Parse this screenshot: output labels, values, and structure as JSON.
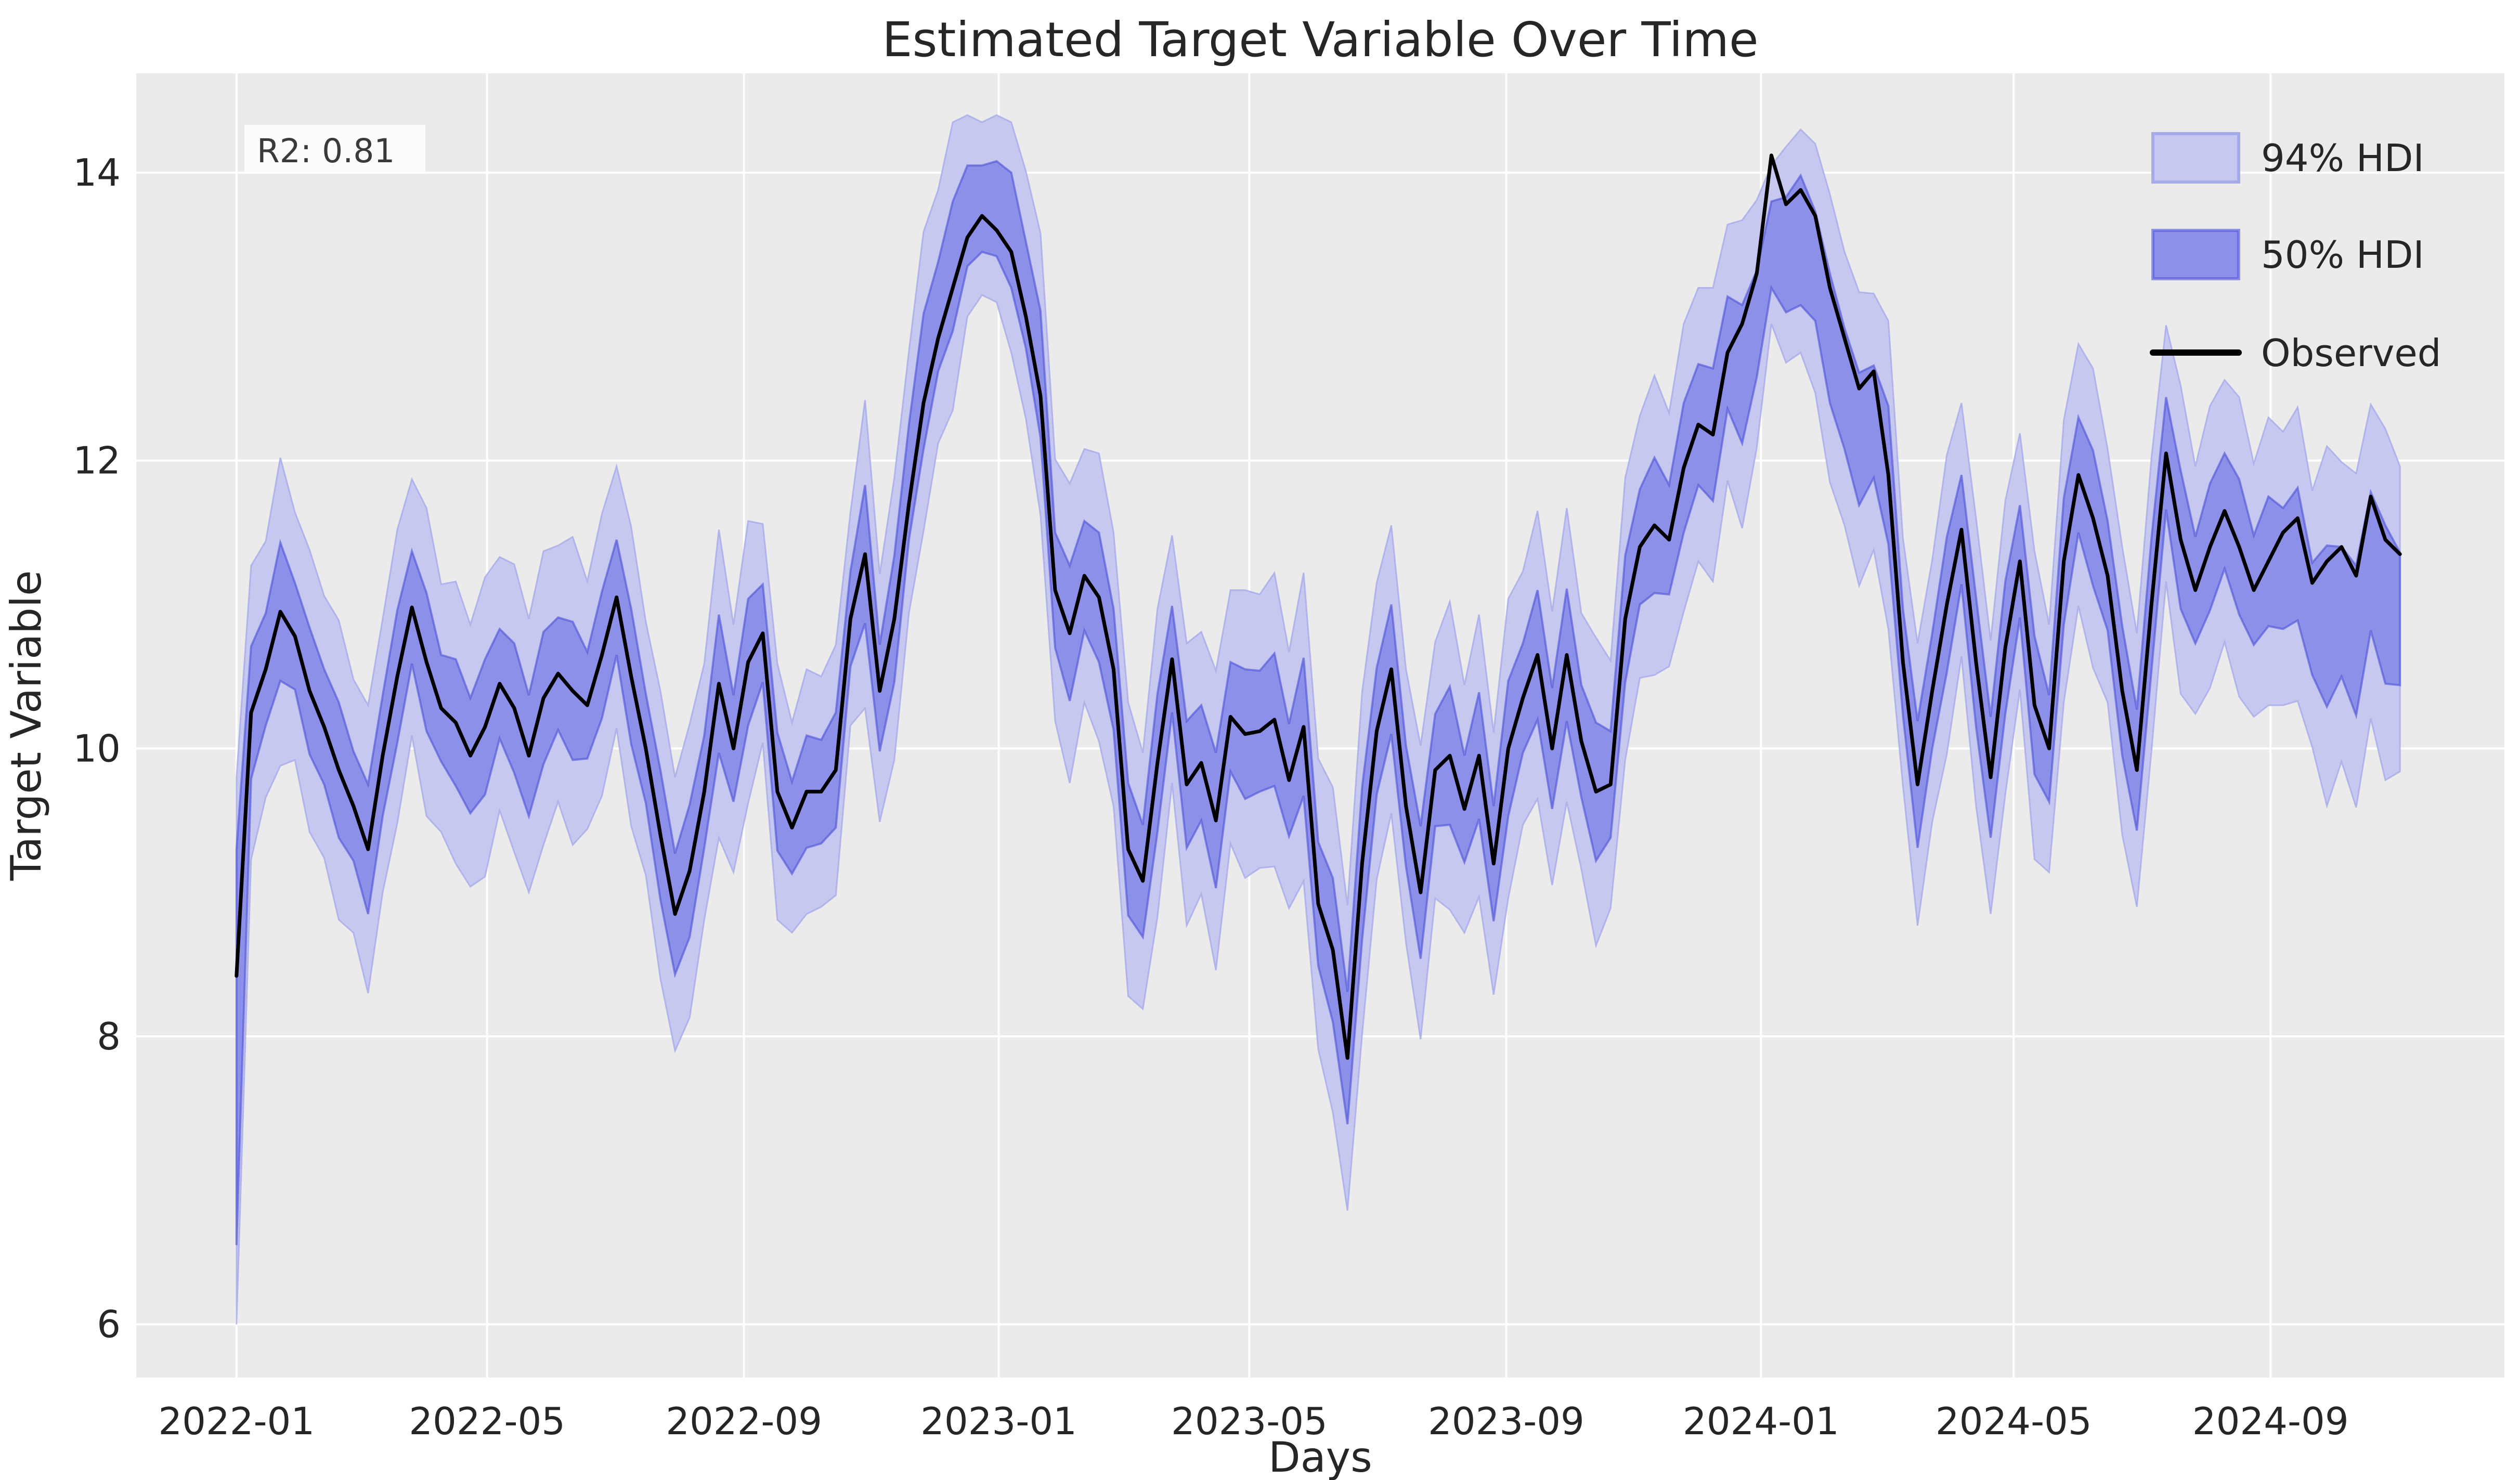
{
  "chart_data": {
    "type": "line",
    "title": "Estimated Target Variable Over Time",
    "xlabel": "Days",
    "ylabel": "Target Variable",
    "annotation": {
      "text": "R2: 0.81"
    },
    "legend": [
      {
        "label": "94% HDI",
        "kind": "band"
      },
      {
        "label": "50% HDI",
        "kind": "band"
      },
      {
        "label": "Observed",
        "kind": "line"
      }
    ],
    "legend_position": "upper right",
    "grid": true,
    "x_start_date": "2022-01-01",
    "x_interval_days": 7,
    "n_points": 149,
    "xlim_days": [
      -48,
      1086
    ],
    "ylim": [
      5.63,
      14.69
    ],
    "xticks": [
      {
        "day": 0,
        "label": "2022-01"
      },
      {
        "day": 120,
        "label": "2022-05"
      },
      {
        "day": 243,
        "label": "2022-09"
      },
      {
        "day": 365,
        "label": "2023-01"
      },
      {
        "day": 485,
        "label": "2023-05"
      },
      {
        "day": 608,
        "label": "2023-09"
      },
      {
        "day": 730,
        "label": "2024-01"
      },
      {
        "day": 851,
        "label": "2024-05"
      },
      {
        "day": 974,
        "label": "2024-09"
      }
    ],
    "yticks": [
      {
        "value": 6,
        "label": "6"
      },
      {
        "value": 8,
        "label": "8"
      },
      {
        "value": 10,
        "label": "10"
      },
      {
        "value": 12,
        "label": "12"
      },
      {
        "value": 14,
        "label": "14"
      }
    ],
    "series": {
      "observed": [
        8.42,
        10.25,
        10.55,
        10.95,
        10.78,
        10.4,
        10.15,
        9.85,
        9.6,
        9.3,
        9.95,
        10.5,
        10.98,
        10.6,
        10.28,
        10.18,
        9.95,
        10.15,
        10.45,
        10.28,
        9.95,
        10.35,
        10.52,
        10.4,
        10.3,
        10.65,
        11.05,
        10.5,
        10.0,
        9.4,
        8.85,
        9.15,
        9.7,
        10.45,
        10.0,
        10.6,
        10.8,
        9.7,
        9.45,
        9.7,
        9.7,
        9.85,
        10.9,
        11.35,
        10.4,
        10.9,
        11.7,
        12.4,
        12.85,
        13.2,
        13.55,
        13.7,
        13.6,
        13.45,
        13.0,
        12.45,
        11.1,
        10.8,
        11.2,
        11.05,
        10.55,
        9.3,
        9.08,
        9.9,
        10.62,
        9.75,
        9.9,
        9.5,
        10.22,
        10.1,
        10.12,
        10.2,
        9.78,
        10.15,
        8.92,
        8.6,
        7.85,
        9.2,
        10.12,
        10.55,
        9.6,
        9.0,
        9.85,
        9.95,
        9.58,
        9.95,
        9.2,
        10.0,
        10.35,
        10.65,
        10.0,
        10.65,
        10.05,
        9.7,
        9.75,
        10.9,
        11.4,
        11.55,
        11.45,
        11.95,
        12.25,
        12.18,
        12.75,
        12.95,
        13.3,
        14.12,
        13.78,
        13.88,
        13.7,
        13.2,
        12.85,
        12.5,
        12.62,
        11.9,
        10.6,
        9.75,
        10.4,
        11.0,
        11.52,
        10.6,
        9.8,
        10.7,
        11.3,
        10.3,
        10.0,
        11.3,
        11.9,
        11.6,
        11.2,
        10.4,
        9.85,
        11.0,
        12.05,
        11.45,
        11.1,
        11.4,
        11.65,
        11.4,
        11.1,
        11.3,
        11.5,
        11.6,
        11.15,
        11.3,
        11.4,
        11.2,
        11.75,
        11.45,
        11.35
      ],
      "hdi94_lower": [
        6.0,
        9.23,
        9.66,
        9.88,
        9.92,
        9.42,
        9.24,
        8.81,
        8.72,
        8.3,
        9.0,
        9.48,
        10.09,
        9.53,
        9.42,
        9.2,
        9.04,
        9.11,
        9.57,
        9.28,
        9.0,
        9.33,
        9.63,
        9.33,
        9.44,
        9.67,
        10.14,
        9.46,
        9.12,
        8.4,
        7.9,
        8.13,
        8.81,
        9.38,
        9.14,
        9.62,
        10.04,
        8.81,
        8.72,
        8.85,
        8.9,
        8.98,
        10.16,
        10.28,
        9.49,
        9.92,
        10.94,
        11.51,
        12.12,
        12.35,
        13.0,
        13.15,
        13.1,
        12.75,
        12.29,
        11.62,
        10.19,
        9.76,
        10.32,
        10.05,
        9.6,
        8.28,
        8.19,
        8.83,
        9.76,
        8.77,
        8.99,
        8.46,
        9.34,
        9.1,
        9.17,
        9.18,
        8.89,
        9.08,
        7.91,
        7.47,
        6.79,
        8.01,
        9.09,
        9.55,
        8.65,
        7.98,
        8.96,
        8.88,
        8.72,
        8.97,
        8.29,
        8.96,
        9.47,
        9.65,
        9.05,
        9.63,
        9.16,
        8.63,
        8.89,
        9.92,
        10.49,
        10.51,
        10.57,
        10.95,
        11.3,
        11.16,
        11.86,
        11.53,
        12.09,
        12.95,
        12.68,
        12.75,
        12.47,
        11.85,
        11.55,
        11.13,
        11.38,
        10.83,
        9.74,
        8.77,
        9.49,
        9.96,
        10.64,
        9.6,
        8.85,
        9.68,
        10.41,
        9.23,
        9.14,
        10.32,
        10.99,
        10.56,
        10.32,
        9.4,
        8.9,
        9.98,
        11.16,
        10.38,
        10.24,
        10.42,
        10.74,
        10.36,
        10.22,
        10.3,
        10.3,
        10.33,
        10.01,
        9.6,
        9.91,
        9.59,
        10.21,
        9.78,
        9.84
      ],
      "hdi94_upper": [
        9.8,
        11.27,
        11.44,
        12.02,
        11.64,
        11.38,
        11.06,
        10.89,
        10.48,
        10.3,
        10.9,
        11.52,
        11.87,
        11.67,
        11.14,
        11.16,
        10.86,
        11.19,
        11.33,
        11.28,
        10.9,
        11.37,
        11.41,
        11.47,
        11.16,
        11.63,
        11.96,
        11.54,
        10.88,
        10.4,
        9.8,
        10.17,
        10.59,
        11.52,
        10.86,
        11.58,
        11.56,
        10.59,
        10.18,
        10.55,
        10.5,
        10.72,
        11.64,
        12.42,
        11.21,
        11.88,
        12.76,
        13.59,
        13.88,
        14.35,
        14.4,
        14.35,
        14.4,
        14.35,
        14.01,
        13.58,
        12.01,
        11.84,
        12.08,
        12.05,
        11.5,
        10.32,
        9.97,
        10.97,
        11.48,
        10.73,
        10.81,
        10.54,
        11.1,
        11.1,
        11.07,
        11.22,
        10.67,
        11.22,
        9.93,
        9.73,
        8.91,
        10.39,
        11.15,
        11.55,
        10.55,
        10.02,
        10.74,
        11.02,
        10.44,
        10.93,
        10.11,
        11.04,
        11.23,
        11.65,
        10.95,
        11.67,
        10.94,
        10.77,
        10.61,
        11.88,
        12.31,
        12.59,
        12.33,
        12.95,
        13.2,
        13.2,
        13.64,
        13.67,
        13.81,
        14.05,
        14.18,
        14.3,
        14.2,
        13.85,
        13.45,
        13.17,
        13.16,
        12.97,
        11.46,
        10.73,
        11.31,
        12.04,
        12.4,
        11.6,
        10.75,
        11.72,
        12.19,
        11.37,
        10.86,
        12.28,
        12.81,
        12.64,
        12.08,
        11.4,
        10.8,
        12.02,
        12.94,
        12.52,
        11.96,
        12.38,
        12.56,
        12.44,
        11.98,
        12.3,
        12.2,
        12.37,
        11.79,
        12.1,
        11.99,
        11.91,
        12.39,
        12.22,
        11.96
      ],
      "hdi50_lower": [
        6.55,
        9.79,
        10.16,
        10.47,
        10.41,
        9.96,
        9.75,
        9.38,
        9.22,
        8.85,
        9.53,
        10.04,
        10.59,
        10.12,
        9.91,
        9.74,
        9.55,
        9.68,
        10.07,
        9.83,
        9.53,
        9.89,
        10.13,
        9.92,
        9.93,
        10.21,
        10.65,
        10.03,
        9.62,
        8.95,
        8.43,
        8.69,
        9.31,
        9.97,
        9.63,
        10.16,
        10.46,
        9.29,
        9.13,
        9.31,
        9.34,
        9.45,
        10.57,
        10.87,
        9.98,
        10.46,
        11.45,
        12.08,
        12.62,
        12.9,
        13.35,
        13.45,
        13.42,
        13.2,
        12.78,
        12.16,
        10.7,
        10.33,
        10.82,
        10.6,
        10.13,
        8.84,
        8.69,
        9.42,
        10.25,
        9.31,
        9.5,
        9.03,
        9.84,
        9.65,
        9.7,
        9.74,
        9.39,
        9.67,
        8.49,
        8.1,
        7.39,
        8.67,
        9.68,
        10.1,
        9.18,
        8.54,
        9.46,
        9.47,
        9.21,
        9.51,
        8.8,
        9.53,
        9.97,
        10.2,
        9.58,
        10.19,
        9.66,
        9.22,
        9.38,
        10.46,
        11.0,
        11.08,
        11.07,
        11.5,
        11.83,
        11.72,
        12.36,
        12.12,
        12.58,
        13.2,
        13.03,
        13.08,
        12.97,
        12.4,
        12.08,
        11.69,
        11.88,
        11.42,
        10.23,
        9.31,
        10.0,
        10.53,
        11.14,
        10.15,
        9.38,
        10.24,
        10.91,
        9.82,
        9.63,
        10.86,
        11.5,
        11.13,
        10.82,
        9.95,
        9.43,
        10.54,
        11.66,
        10.97,
        10.73,
        10.96,
        11.25,
        10.93,
        10.72,
        10.85,
        10.83,
        10.89,
        10.51,
        10.29,
        10.5,
        10.23,
        10.82,
        10.45,
        10.44
      ],
      "hdi50_upper": [
        9.3,
        10.71,
        10.94,
        11.43,
        11.15,
        10.84,
        10.55,
        10.32,
        9.98,
        9.75,
        10.37,
        10.96,
        11.37,
        11.08,
        10.65,
        10.62,
        10.35,
        10.62,
        10.83,
        10.73,
        10.37,
        10.81,
        10.91,
        10.88,
        10.67,
        11.09,
        11.45,
        10.97,
        10.38,
        9.85,
        9.27,
        9.61,
        10.09,
        10.93,
        10.37,
        11.04,
        11.14,
        10.11,
        9.77,
        10.09,
        10.06,
        10.25,
        11.23,
        11.83,
        10.72,
        11.34,
        12.25,
        13.02,
        13.38,
        13.8,
        14.05,
        14.05,
        14.08,
        14.0,
        13.52,
        13.04,
        11.5,
        11.27,
        11.58,
        11.5,
        10.97,
        9.76,
        9.47,
        10.38,
        10.99,
        10.19,
        10.3,
        9.97,
        10.6,
        10.55,
        10.54,
        10.66,
        10.17,
        10.63,
        9.35,
        9.1,
        8.31,
        9.73,
        10.56,
        11.0,
        10.02,
        9.46,
        10.24,
        10.43,
        9.95,
        10.39,
        9.6,
        10.47,
        10.73,
        11.1,
        10.42,
        11.11,
        10.44,
        10.18,
        10.12,
        11.34,
        11.8,
        12.02,
        11.83,
        12.4,
        12.67,
        12.64,
        13.14,
        13.08,
        13.32,
        13.8,
        13.83,
        13.98,
        13.73,
        13.3,
        12.92,
        12.61,
        12.66,
        12.38,
        10.97,
        10.19,
        10.8,
        11.47,
        11.9,
        11.05,
        10.22,
        11.16,
        11.69,
        10.78,
        10.37,
        11.74,
        12.3,
        12.07,
        11.58,
        10.85,
        10.27,
        11.46,
        12.44,
        11.93,
        11.47,
        11.84,
        12.05,
        11.87,
        11.48,
        11.75,
        11.67,
        11.81,
        11.29,
        11.41,
        11.4,
        11.27,
        11.78,
        11.55,
        11.36
      ]
    },
    "colors": {
      "figure_bg": "#ffffff",
      "axes_bg": "#ebebeb",
      "grid": "#ffffff",
      "observed_line": "#000000",
      "hdi94_fill": "#c6c8f0",
      "hdi94_edge": "#a6aae8",
      "hdi50_fill": "#8d90e8",
      "hdi50_edge": "#5157d8",
      "text": "#262626",
      "annotation_bg": "#ffffff"
    }
  }
}
